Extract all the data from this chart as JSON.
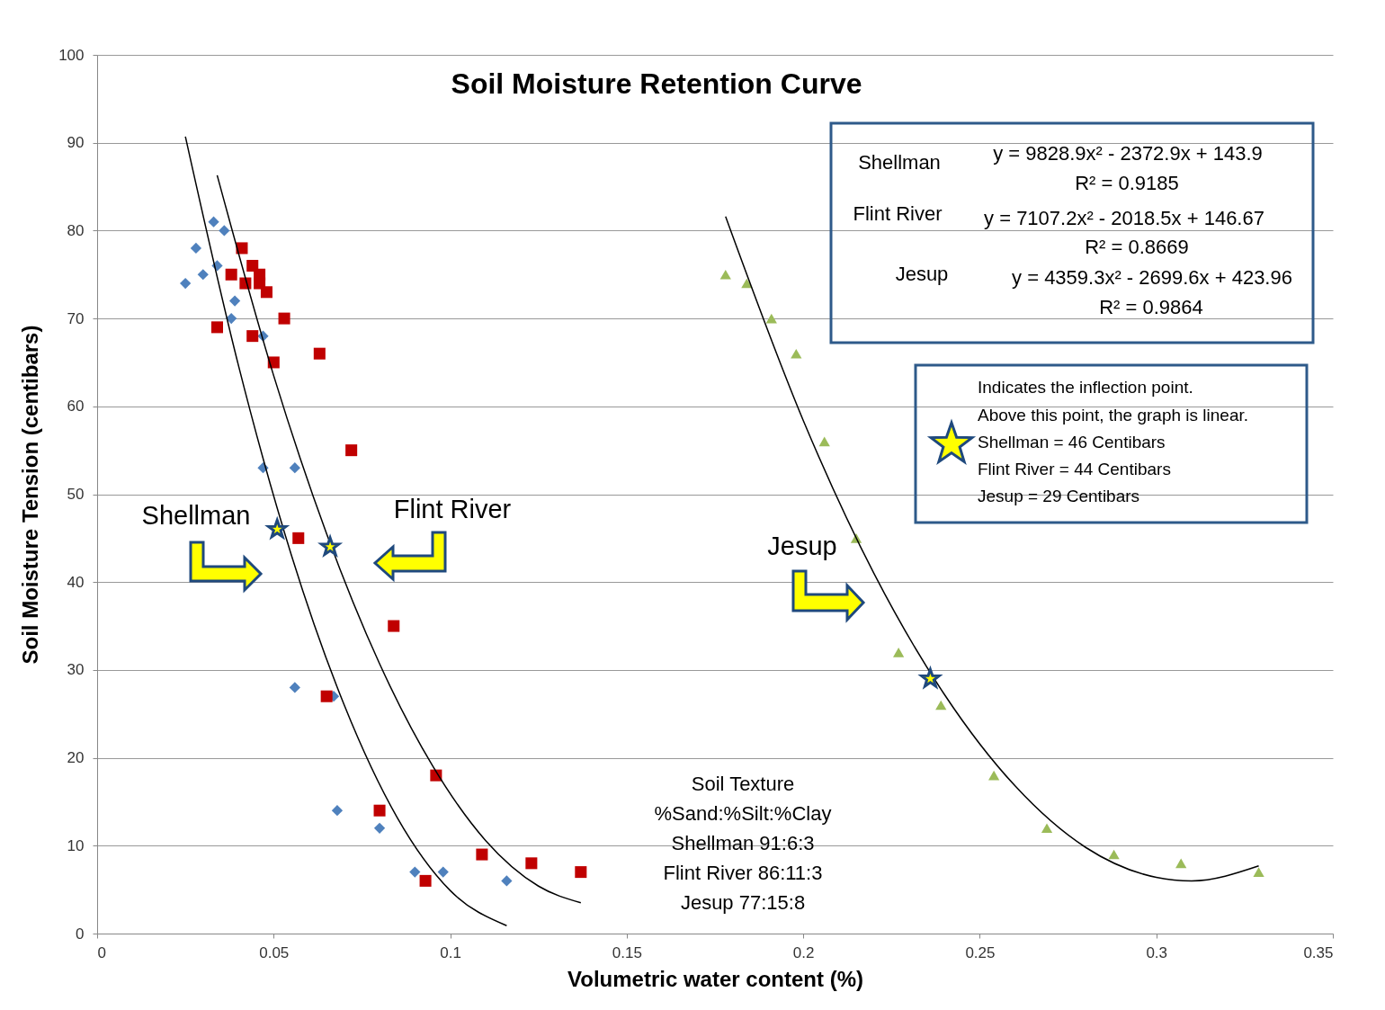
{
  "chart_data": {
    "type": "scatter",
    "title": "Soil Moisture Retention Curve",
    "xlabel": "Volumetric water content (%)",
    "ylabel": "Soil Moisture Tension (centibars)",
    "xlim": [
      0,
      0.35
    ],
    "xticks": [
      {
        "value": 0,
        "label": "0"
      },
      0.05,
      {
        "value": 0.1,
        "label": "0.1"
      },
      0.15,
      {
        "value": 0.2,
        "label": "0.2"
      },
      0.25,
      {
        "value": 0.3,
        "label": "0.3"
      },
      0.35
    ],
    "ylim": [
      0,
      100
    ],
    "yticks": [
      0,
      10,
      20,
      30,
      40,
      50,
      60,
      70,
      80,
      90,
      100
    ],
    "grid": "y",
    "series": [
      {
        "marker": "diamond",
        "color": "#4f81bd",
        "x": [
          0.025,
          0.028,
          0.03,
          0.033,
          0.034,
          0.036,
          0.038,
          0.039,
          0.047,
          0.047,
          0.056,
          0.056,
          0.067,
          0.068,
          0.08,
          0.09,
          0.098,
          0.116
        ],
        "values": [
          74,
          78,
          75,
          81,
          76,
          80,
          70,
          72,
          68,
          53,
          53,
          28,
          27,
          14,
          12,
          7,
          7,
          6
        ]
      },
      {
        "marker": "square",
        "color": "#c00000",
        "x": [
          0.034,
          0.038,
          0.041,
          0.042,
          0.044,
          0.044,
          0.046,
          0.046,
          0.048,
          0.05,
          0.053,
          0.063,
          0.072,
          0.057,
          0.084,
          0.065,
          0.096,
          0.08,
          0.109,
          0.123,
          0.137,
          0.093
        ],
        "values": [
          69,
          75,
          78,
          74,
          76,
          68,
          75,
          74,
          73,
          65,
          70,
          66,
          55,
          45,
          35,
          27,
          18,
          14,
          9,
          8,
          7,
          6
        ]
      },
      {
        "marker": "triangle",
        "color": "#9bbb59",
        "x": [
          0.178,
          0.184,
          0.191,
          0.198,
          0.206,
          0.215,
          0.227,
          0.239,
          0.254,
          0.269,
          0.288,
          0.307,
          0.329
        ],
        "values": [
          75,
          74,
          70,
          66,
          56,
          45,
          32,
          26,
          18,
          12,
          9,
          8,
          7
        ]
      },
      {
        "type": "line",
        "color": "#000000",
        "x": [
          0.025,
          0.04,
          0.055,
          0.07,
          0.085,
          0.1,
          0.116
        ],
        "values": [
          90.7,
          64.7,
          43.1,
          26.0,
          13.2,
          4.9,
          0.9
        ]
      },
      {
        "type": "line",
        "color": "#000000",
        "x": [
          0.034,
          0.05,
          0.065,
          0.08,
          0.095,
          0.11,
          0.125,
          0.137
        ],
        "values": [
          86.3,
          63.5,
          45.5,
          30.7,
          19.1,
          10.6,
          5.4,
          3.5
        ]
      },
      {
        "type": "line",
        "color": "#000000",
        "x": [
          0.178,
          0.2,
          0.22,
          0.24,
          0.26,
          0.28,
          0.3,
          0.31,
          0.329
        ],
        "values": [
          81.6,
          58.4,
          41.0,
          27.2,
          16.8,
          9.8,
          6.4,
          6.0,
          7.7
        ]
      },
      {
        "marker": "star",
        "color": "#ffff00",
        "x": [
          0.051,
          0.066,
          0.236
        ],
        "values": [
          46,
          44,
          29
        ]
      }
    ],
    "annotations": [
      "Shellman",
      "Flint River",
      "Jesup",
      "Shellman",
      "y = 9828.9x² - 2372.9x + 143.9",
      "R² = 0.9185",
      "Flint River",
      "y = 7107.2x² - 2018.5x + 146.67",
      "R² = 0.8669",
      "Jesup",
      "y = 4359.3x² - 2699.6x + 423.96",
      "R² = 0.9864",
      "Indicates the inflection point.",
      "Above this point, the graph is linear.",
      "Shellman  = 46 Centibars",
      "Flint River  = 44 Centibars",
      "Jesup = 29 Centibars",
      "Soil Texture",
      "%Sand:%Silt:%Clay",
      "Shellman 91:6:3",
      "Flint River 86:11:3",
      "Jesup 77:15:8"
    ]
  }
}
